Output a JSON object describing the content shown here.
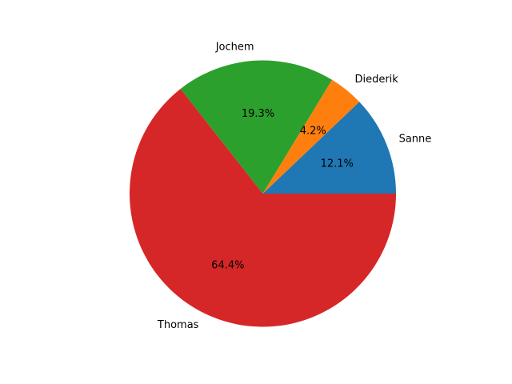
{
  "chart_data": {
    "type": "pie",
    "slices": [
      {
        "label": "Sanne",
        "percent_label": "12.1%",
        "value": 12.1,
        "color": "#1f77b4"
      },
      {
        "label": "Diederik",
        "percent_label": "4.2%",
        "value": 4.2,
        "color": "#ff7f0e"
      },
      {
        "label": "Jochem",
        "percent_label": "19.3%",
        "value": 19.3,
        "color": "#2ca02c"
      },
      {
        "label": "Thomas",
        "percent_label": "64.4%",
        "value": 64.4,
        "color": "#d62728"
      }
    ],
    "start_angle_deg": 0,
    "direction": "counterclockwise",
    "legend": "none"
  }
}
